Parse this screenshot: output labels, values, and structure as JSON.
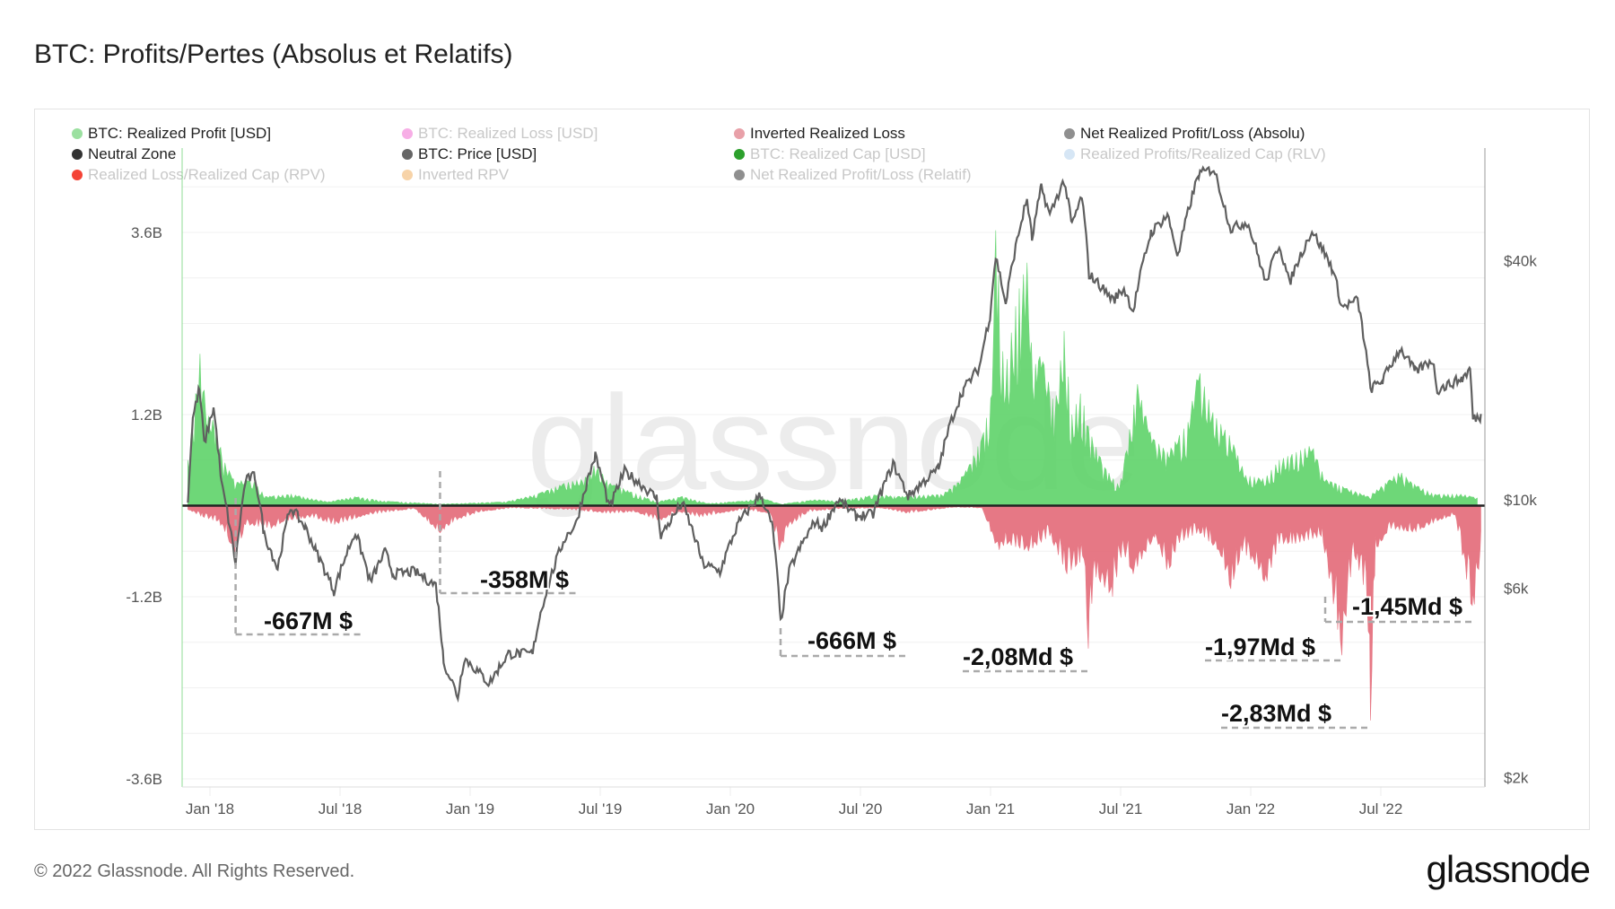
{
  "title": "BTC: Profits/Pertes (Absolus et Relatifs)",
  "footer": {
    "copyright": "© 2022 Glassnode. All Rights Reserved.",
    "logo": "glassnode"
  },
  "watermark": "glassnode",
  "legend": [
    {
      "label": "BTC: Realized Profit [USD]",
      "color": "#9be0a0",
      "active": true
    },
    {
      "label": "BTC: Realized Loss [USD]",
      "color": "#f7aee6",
      "active": false
    },
    {
      "label": "Inverted Realized Loss",
      "color": "#e8a0a8",
      "active": true
    },
    {
      "label": "Net Realized Profit/Loss (Absolu)",
      "color": "#8f8f8f",
      "active": true
    },
    {
      "label": "Neutral Zone",
      "color": "#333333",
      "active": true
    },
    {
      "label": "BTC: Price [USD]",
      "color": "#666666",
      "active": true
    },
    {
      "label": "BTC: Realized Cap [USD]",
      "color": "#2ca02c",
      "active": false
    },
    {
      "label": "Realized Profits/Realized Cap (RLV)",
      "color": "#d6e6f5",
      "active": false
    },
    {
      "label": "Realized Loss/Realized Cap (RPV)",
      "color": "#f44336",
      "active": false
    },
    {
      "label": "Inverted RPV",
      "color": "#f7d3a8",
      "active": false
    },
    {
      "label": "Net Realized Profit/Loss (Relatif)",
      "color": "#8f8f8f",
      "active": false
    }
  ],
  "chart_data": {
    "type": "area",
    "title": "BTC: Profits/Pertes (Absolus et Relatifs)",
    "x_ticks": [
      "Jan '18",
      "Jul '18",
      "Jan '19",
      "Jul '19",
      "Jan '20",
      "Jul '20",
      "Jan '21",
      "Jul '21",
      "Jan '22",
      "Jul '22"
    ],
    "x_range": [
      "2017-12-01",
      "2022-11-20"
    ],
    "y_left": {
      "ticks": [
        "3.6B",
        "1.2B",
        "-1.2B",
        "-3.6B"
      ],
      "tick_values": [
        3.6,
        1.2,
        -1.2,
        -3.6
      ],
      "unit": "B USD",
      "range": [
        -3.7,
        4.7
      ]
    },
    "y_right": {
      "ticks": [
        "$40k",
        "$10k",
        "$6k",
        "$2k"
      ],
      "tick_values": [
        40000,
        10000,
        6000,
        2000
      ],
      "scale": "log"
    },
    "grid": true,
    "legend_position": "top",
    "colors": {
      "profit": "#5fd36a",
      "loss": "#e46a78",
      "price": "#5f5f5f",
      "neutral": "#222222"
    },
    "series": [
      {
        "name": "BTC: Realized Profit [USD]",
        "unit": "B",
        "points": [
          [
            "2017-12-01",
            0.6
          ],
          [
            "2017-12-10",
            1.3
          ],
          [
            "2017-12-18",
            2.0
          ],
          [
            "2017-12-28",
            1.2
          ],
          [
            "2018-01-08",
            1.1
          ],
          [
            "2018-01-20",
            0.6
          ],
          [
            "2018-02-06",
            0.3
          ],
          [
            "2018-02-20",
            0.35
          ],
          [
            "2018-03-05",
            0.3
          ],
          [
            "2018-03-20",
            0.12
          ],
          [
            "2018-04-25",
            0.15
          ],
          [
            "2018-05-10",
            0.12
          ],
          [
            "2018-06-15",
            0.05
          ],
          [
            "2018-07-25",
            0.12
          ],
          [
            "2018-09-01",
            0.06
          ],
          [
            "2018-10-15",
            0.04
          ],
          [
            "2018-11-20",
            0.02
          ],
          [
            "2018-12-20",
            0.03
          ],
          [
            "2019-02-20",
            0.05
          ],
          [
            "2019-04-05",
            0.15
          ],
          [
            "2019-05-15",
            0.3
          ],
          [
            "2019-06-10",
            0.35
          ],
          [
            "2019-06-26",
            0.55
          ],
          [
            "2019-07-15",
            0.3
          ],
          [
            "2019-08-10",
            0.2
          ],
          [
            "2019-09-20",
            0.05
          ],
          [
            "2019-10-26",
            0.12
          ],
          [
            "2019-12-01",
            0.03
          ],
          [
            "2020-01-20",
            0.06
          ],
          [
            "2020-02-15",
            0.1
          ],
          [
            "2020-03-12",
            0.02
          ],
          [
            "2020-05-01",
            0.08
          ],
          [
            "2020-06-01",
            0.06
          ],
          [
            "2020-07-28",
            0.15
          ],
          [
            "2020-08-20",
            0.12
          ],
          [
            "2020-10-25",
            0.15
          ],
          [
            "2020-11-15",
            0.3
          ],
          [
            "2020-11-30",
            0.5
          ],
          [
            "2020-12-20",
            0.9
          ],
          [
            "2021-01-03",
            1.5
          ],
          [
            "2021-01-08",
            3.7
          ],
          [
            "2021-01-20",
            1.7
          ],
          [
            "2021-02-08",
            2.8
          ],
          [
            "2021-02-21",
            3.2
          ],
          [
            "2021-03-01",
            1.8
          ],
          [
            "2021-03-13",
            2.0
          ],
          [
            "2021-04-01",
            1.3
          ],
          [
            "2021-04-14",
            2.3
          ],
          [
            "2021-04-25",
            1.2
          ],
          [
            "2021-05-08",
            1.5
          ],
          [
            "2021-05-19",
            1.0
          ],
          [
            "2021-06-10",
            0.5
          ],
          [
            "2021-07-01",
            0.25
          ],
          [
            "2021-07-26",
            1.6
          ],
          [
            "2021-08-15",
            0.9
          ],
          [
            "2021-09-07",
            0.7
          ],
          [
            "2021-10-05",
            1.1
          ],
          [
            "2021-10-20",
            1.8
          ],
          [
            "2021-11-10",
            1.2
          ],
          [
            "2021-12-04",
            0.9
          ],
          [
            "2021-12-25",
            0.4
          ],
          [
            "2022-01-20",
            0.35
          ],
          [
            "2022-02-10",
            0.6
          ],
          [
            "2022-03-28",
            0.8
          ],
          [
            "2022-04-15",
            0.35
          ],
          [
            "2022-05-10",
            0.25
          ],
          [
            "2022-06-15",
            0.12
          ],
          [
            "2022-07-30",
            0.45
          ],
          [
            "2022-08-15",
            0.3
          ],
          [
            "2022-09-15",
            0.15
          ],
          [
            "2022-10-25",
            0.15
          ],
          [
            "2022-11-15",
            0.1
          ]
        ]
      },
      {
        "name": "Inverted Realized Loss",
        "unit": "B",
        "points": [
          [
            "2017-12-01",
            -0.05
          ],
          [
            "2017-12-22",
            -0.15
          ],
          [
            "2018-01-10",
            -0.2
          ],
          [
            "2018-01-20",
            -0.3
          ],
          [
            "2018-02-06",
            -0.667
          ],
          [
            "2018-02-20",
            -0.25
          ],
          [
            "2018-03-30",
            -0.3
          ],
          [
            "2018-04-15",
            -0.2
          ],
          [
            "2018-05-25",
            -0.15
          ],
          [
            "2018-06-25",
            -0.25
          ],
          [
            "2018-08-10",
            -0.12
          ],
          [
            "2018-09-10",
            -0.08
          ],
          [
            "2018-10-15",
            -0.04
          ],
          [
            "2018-11-20",
            -0.358
          ],
          [
            "2018-12-10",
            -0.2
          ],
          [
            "2019-01-15",
            -0.08
          ],
          [
            "2019-03-01",
            -0.03
          ],
          [
            "2019-05-20",
            -0.05
          ],
          [
            "2019-07-15",
            -0.1
          ],
          [
            "2019-08-20",
            -0.08
          ],
          [
            "2019-09-25",
            -0.2
          ],
          [
            "2019-10-20",
            -0.08
          ],
          [
            "2019-11-20",
            -0.15
          ],
          [
            "2019-12-18",
            -0.1
          ],
          [
            "2020-01-20",
            -0.05
          ],
          [
            "2020-02-27",
            -0.1
          ],
          [
            "2020-03-12",
            -0.666
          ],
          [
            "2020-03-20",
            -0.3
          ],
          [
            "2020-04-20",
            -0.08
          ],
          [
            "2020-06-01",
            -0.04
          ],
          [
            "2020-08-01",
            -0.03
          ],
          [
            "2020-09-05",
            -0.1
          ],
          [
            "2020-11-10",
            -0.02
          ],
          [
            "2020-12-20",
            -0.03
          ],
          [
            "2021-01-11",
            -0.6
          ],
          [
            "2021-01-22",
            -0.5
          ],
          [
            "2021-02-23",
            -0.6
          ],
          [
            "2021-03-25",
            -0.4
          ],
          [
            "2021-04-18",
            -0.9
          ],
          [
            "2021-05-12",
            -0.7
          ],
          [
            "2021-05-19",
            -2.08
          ],
          [
            "2021-05-25",
            -0.9
          ],
          [
            "2021-06-21",
            -1.2
          ],
          [
            "2021-07-05",
            -0.6
          ],
          [
            "2021-07-20",
            -0.9
          ],
          [
            "2021-08-20",
            -0.4
          ],
          [
            "2021-09-07",
            -0.9
          ],
          [
            "2021-09-21",
            -0.5
          ],
          [
            "2021-10-20",
            -0.35
          ],
          [
            "2021-11-18",
            -0.6
          ],
          [
            "2021-12-04",
            -1.1
          ],
          [
            "2021-12-20",
            -0.6
          ],
          [
            "2022-01-10",
            -0.8
          ],
          [
            "2022-01-22",
            -1.05
          ],
          [
            "2022-02-10",
            -0.5
          ],
          [
            "2022-03-05",
            -0.5
          ],
          [
            "2022-04-11",
            -0.4
          ],
          [
            "2022-05-09",
            -1.97
          ],
          [
            "2022-05-25",
            -0.6
          ],
          [
            "2022-06-13",
            -1.2
          ],
          [
            "2022-06-18",
            -2.83
          ],
          [
            "2022-06-25",
            -0.6
          ],
          [
            "2022-07-15",
            -0.3
          ],
          [
            "2022-08-19",
            -0.35
          ],
          [
            "2022-09-20",
            -0.2
          ],
          [
            "2022-10-15",
            -0.12
          ],
          [
            "2022-11-09",
            -1.45
          ],
          [
            "2022-11-15",
            -1.0
          ],
          [
            "2022-11-20",
            -0.6
          ]
        ]
      },
      {
        "name": "BTC: Price [USD]",
        "axis": "right",
        "points": [
          [
            "2017-12-01",
            9800
          ],
          [
            "2017-12-08",
            16000
          ],
          [
            "2017-12-17",
            19000
          ],
          [
            "2017-12-24",
            13800
          ],
          [
            "2018-01-06",
            17000
          ],
          [
            "2018-01-17",
            11000
          ],
          [
            "2018-02-06",
            6900
          ],
          [
            "2018-02-20",
            11200
          ],
          [
            "2018-03-05",
            11500
          ],
          [
            "2018-03-18",
            8200
          ],
          [
            "2018-04-06",
            6700
          ],
          [
            "2018-04-24",
            9600
          ],
          [
            "2018-05-15",
            8500
          ],
          [
            "2018-05-30",
            7400
          ],
          [
            "2018-06-24",
            5900
          ],
          [
            "2018-07-24",
            8300
          ],
          [
            "2018-08-14",
            6200
          ],
          [
            "2018-09-04",
            7400
          ],
          [
            "2018-09-15",
            6500
          ],
          [
            "2018-10-15",
            6600
          ],
          [
            "2018-11-14",
            6100
          ],
          [
            "2018-11-25",
            3900
          ],
          [
            "2018-12-15",
            3200
          ],
          [
            "2018-12-24",
            4000
          ],
          [
            "2019-01-28",
            3450
          ],
          [
            "2019-02-24",
            4100
          ],
          [
            "2019-03-30",
            4100
          ],
          [
            "2019-04-10",
            5200
          ],
          [
            "2019-05-14",
            8000
          ],
          [
            "2019-05-30",
            8700
          ],
          [
            "2019-06-26",
            12900
          ],
          [
            "2019-07-16",
            9500
          ],
          [
            "2019-08-06",
            11800
          ],
          [
            "2019-09-20",
            10100
          ],
          [
            "2019-09-26",
            8100
          ],
          [
            "2019-10-26",
            9800
          ],
          [
            "2019-11-24",
            6900
          ],
          [
            "2019-12-18",
            6600
          ],
          [
            "2020-01-14",
            8800
          ],
          [
            "2020-02-13",
            10300
          ],
          [
            "2020-03-01",
            8500
          ],
          [
            "2020-03-12",
            4900
          ],
          [
            "2020-03-25",
            6700
          ],
          [
            "2020-04-29",
            8800
          ],
          [
            "2020-05-10",
            8500
          ],
          [
            "2020-06-01",
            10000
          ],
          [
            "2020-06-26",
            9100
          ],
          [
            "2020-07-20",
            9200
          ],
          [
            "2020-08-17",
            12300
          ],
          [
            "2020-09-07",
            10200
          ],
          [
            "2020-10-20",
            12000
          ],
          [
            "2020-11-05",
            15500
          ],
          [
            "2020-11-24",
            19000
          ],
          [
            "2020-12-16",
            21500
          ],
          [
            "2020-12-31",
            29000
          ],
          [
            "2021-01-08",
            41000
          ],
          [
            "2021-01-22",
            31000
          ],
          [
            "2021-02-21",
            57000
          ],
          [
            "2021-02-28",
            45000
          ],
          [
            "2021-03-13",
            61000
          ],
          [
            "2021-03-25",
            52000
          ],
          [
            "2021-04-14",
            63500
          ],
          [
            "2021-04-25",
            49000
          ],
          [
            "2021-05-09",
            58000
          ],
          [
            "2021-05-19",
            37000
          ],
          [
            "2021-06-22",
            31800
          ],
          [
            "2021-07-07",
            34000
          ],
          [
            "2021-07-20",
            29800
          ],
          [
            "2021-08-14",
            47000
          ],
          [
            "2021-09-06",
            52000
          ],
          [
            "2021-09-21",
            40800
          ],
          [
            "2021-10-20",
            66000
          ],
          [
            "2021-11-10",
            68000
          ],
          [
            "2021-11-26",
            54000
          ],
          [
            "2021-12-04",
            48000
          ],
          [
            "2021-12-27",
            50000
          ],
          [
            "2022-01-22",
            35000
          ],
          [
            "2022-02-10",
            44000
          ],
          [
            "2022-02-24",
            35000
          ],
          [
            "2022-03-28",
            47500
          ],
          [
            "2022-04-26",
            38000
          ],
          [
            "2022-05-09",
            30500
          ],
          [
            "2022-05-31",
            31800
          ],
          [
            "2022-06-18",
            19000
          ],
          [
            "2022-07-05",
            20000
          ],
          [
            "2022-07-30",
            24000
          ],
          [
            "2022-08-20",
            21000
          ],
          [
            "2022-09-13",
            22500
          ],
          [
            "2022-09-20",
            18900
          ],
          [
            "2022-10-25",
            20200
          ],
          [
            "2022-11-05",
            21300
          ],
          [
            "2022-11-09",
            16000
          ],
          [
            "2022-11-20",
            16200
          ]
        ]
      }
    ],
    "annotations": [
      {
        "label": "-667M $",
        "date": "2018-02-06",
        "value": -0.667
      },
      {
        "label": "-358M $",
        "date": "2018-11-20",
        "value": -0.358
      },
      {
        "label": "-666M $",
        "date": "2020-03-12",
        "value": -0.666
      },
      {
        "label": "-2,08Md $",
        "date": "2021-05-19",
        "value": -2.08
      },
      {
        "label": "-1,97Md $",
        "date": "2022-05-09",
        "value": -1.97
      },
      {
        "label": "-2,83Md $",
        "date": "2022-06-18",
        "value": -2.83
      },
      {
        "label": "-1,45Md $",
        "date": "2022-11-09",
        "value": -1.45
      }
    ]
  }
}
